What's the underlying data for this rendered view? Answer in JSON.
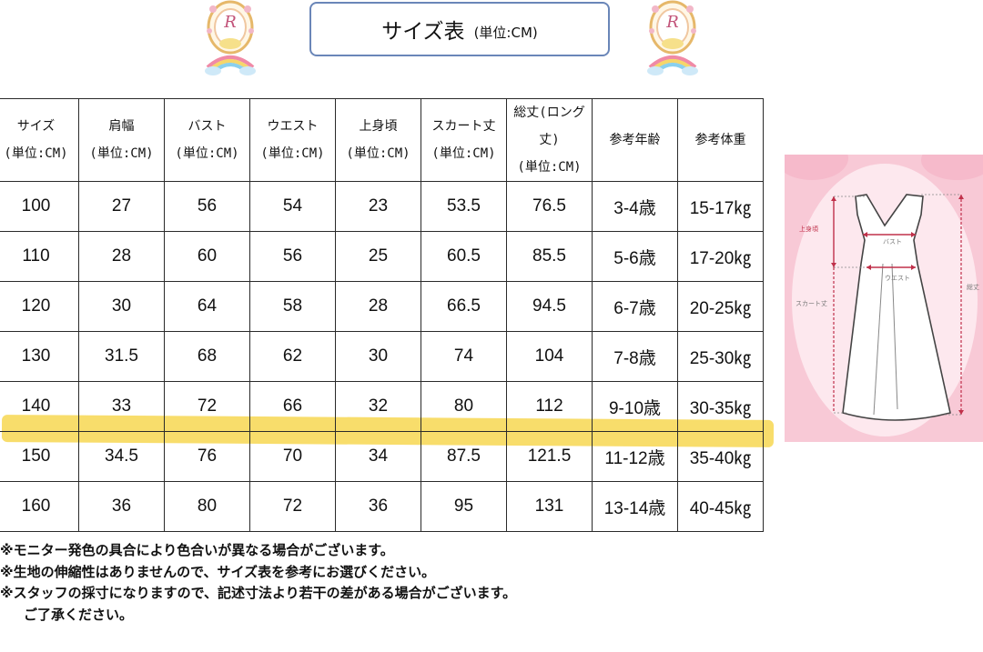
{
  "title": {
    "main": "サイズ表",
    "unit": "(単位:CM)"
  },
  "logo_mark": "R",
  "table": {
    "headers": [
      {
        "line1": "サイズ",
        "line2": "(単位:CM)"
      },
      {
        "line1": "肩幅",
        "line2": "(単位:CM)"
      },
      {
        "line1": "バスト",
        "line2": "(単位:CM)"
      },
      {
        "line1": "ウエスト",
        "line2": "(単位:CM)"
      },
      {
        "line1": "上身頃",
        "line2": "(単位:CM)"
      },
      {
        "line1": "スカート丈",
        "line2": "(単位:CM)"
      },
      {
        "line1": "総丈(ロング丈)",
        "line2": "(単位:CM)"
      },
      {
        "line1": "参考年齢",
        "line2": ""
      },
      {
        "line1": "参考体重",
        "line2": ""
      }
    ],
    "rows": [
      [
        "100",
        "27",
        "56",
        "54",
        "23",
        "53.5",
        "76.5",
        "3-4歳",
        "15-17㎏"
      ],
      [
        "110",
        "28",
        "60",
        "56",
        "25",
        "60.5",
        "85.5",
        "5-6歳",
        "17-20㎏"
      ],
      [
        "120",
        "30",
        "64",
        "58",
        "28",
        "66.5",
        "94.5",
        "6-7歳",
        "20-25㎏"
      ],
      [
        "130",
        "31.5",
        "68",
        "62",
        "30",
        "74",
        "104",
        "7-8歳",
        "25-30㎏"
      ],
      [
        "140",
        "33",
        "72",
        "66",
        "32",
        "80",
        "112",
        "9-10歳",
        "30-35㎏"
      ],
      [
        "150",
        "34.5",
        "76",
        "70",
        "34",
        "87.5",
        "121.5",
        "11-12歳",
        "35-40㎏"
      ],
      [
        "160",
        "36",
        "80",
        "72",
        "36",
        "95",
        "131",
        "13-14歳",
        "40-45㎏"
      ]
    ],
    "highlighted_row": "150",
    "highlight_color": "#f7d54a"
  },
  "diagram": {
    "labels": {
      "upper_body": "上身頃",
      "bust": "バスト",
      "waist": "ウエスト",
      "skirt": "スカート丈",
      "total": "総丈"
    },
    "background": "#f8c9d6",
    "arrow_color": "#c0304a"
  },
  "notes": [
    "※モニター発色の具合により色合いが異なる場合がございます。",
    "※生地の伸縮性はありませんので、サイズ表を参考にお選びください。",
    "※スタッフの採寸になりますので、記述寸法より若干の差がある場合がございます。",
    "ご了承ください。"
  ]
}
